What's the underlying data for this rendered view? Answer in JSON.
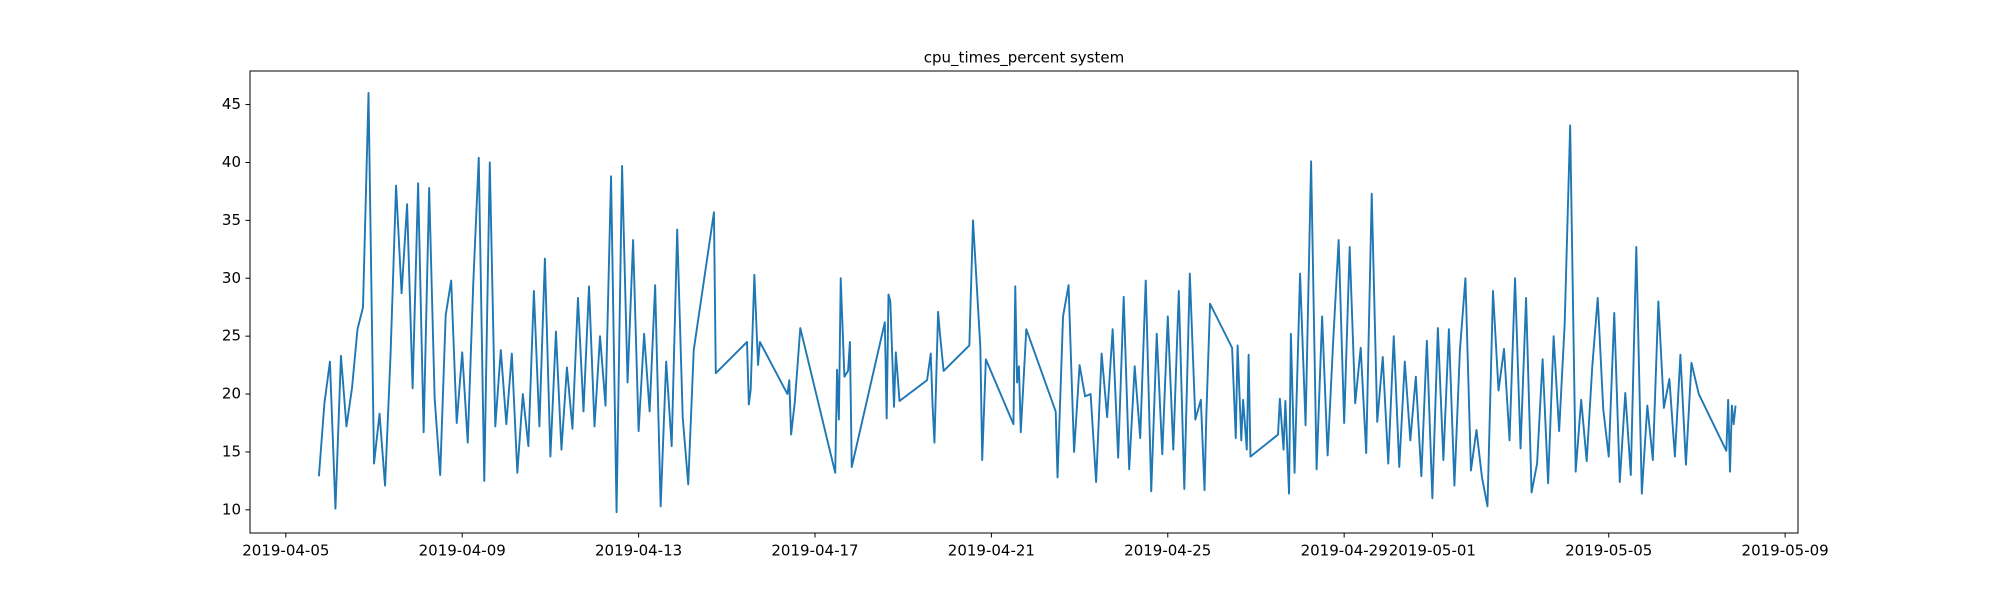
{
  "chart_data": {
    "type": "line",
    "title": "cpu_times_percent system",
    "color": "#1f77b4",
    "xlim": [
      "2019-04-04 04:30",
      "2019-05-09 07:00"
    ],
    "xticks": [
      "2019-04-05",
      "2019-04-09",
      "2019-04-13",
      "2019-04-17",
      "2019-04-21",
      "2019-04-25",
      "2019-04-29",
      "2019-05-01",
      "2019-05-05",
      "2019-05-09"
    ],
    "ylim": [
      8.0,
      47.9
    ],
    "yticks": [
      10,
      15,
      20,
      25,
      30,
      35,
      40,
      45
    ],
    "grid": false,
    "x": [
      "2019-04-05 18:00",
      "2019-04-05 21:00",
      "2019-04-06 00:00",
      "2019-04-06 03:00",
      "2019-04-06 06:00",
      "2019-04-06 09:00",
      "2019-04-06 12:00",
      "2019-04-06 15:00",
      "2019-04-06 18:00",
      "2019-04-06 21:00",
      "2019-04-07 00:00",
      "2019-04-07 03:00",
      "2019-04-07 06:00",
      "2019-04-07 09:00",
      "2019-04-07 12:00",
      "2019-04-07 15:00",
      "2019-04-07 18:00",
      "2019-04-07 21:00",
      "2019-04-08 00:00",
      "2019-04-08 03:00",
      "2019-04-08 06:00",
      "2019-04-08 09:00",
      "2019-04-08 12:00",
      "2019-04-08 15:00",
      "2019-04-08 18:00",
      "2019-04-08 21:00",
      "2019-04-09 00:00",
      "2019-04-09 03:00",
      "2019-04-09 06:00",
      "2019-04-09 09:00",
      "2019-04-09 12:00",
      "2019-04-09 15:00",
      "2019-04-09 18:00",
      "2019-04-09 21:00",
      "2019-04-10 00:00",
      "2019-04-10 03:00",
      "2019-04-10 06:00",
      "2019-04-10 09:00",
      "2019-04-10 12:00",
      "2019-04-10 15:00",
      "2019-04-10 18:00",
      "2019-04-10 21:00",
      "2019-04-11 00:00",
      "2019-04-11 03:00",
      "2019-04-11 06:00",
      "2019-04-11 09:00",
      "2019-04-11 12:00",
      "2019-04-11 15:00",
      "2019-04-11 18:00",
      "2019-04-11 21:00",
      "2019-04-12 00:00",
      "2019-04-12 03:00",
      "2019-04-12 06:00",
      "2019-04-12 09:00",
      "2019-04-12 12:00",
      "2019-04-12 15:00",
      "2019-04-12 18:00",
      "2019-04-12 21:00",
      "2019-04-13 00:00",
      "2019-04-13 03:00",
      "2019-04-13 06:00",
      "2019-04-13 09:00",
      "2019-04-13 12:00",
      "2019-04-13 15:00",
      "2019-04-13 18:00",
      "2019-04-13 21:00",
      "2019-04-14 00:00",
      "2019-04-14 03:00",
      "2019-04-14 06:00",
      "2019-04-14 17:00",
      "2019-04-14 18:00",
      "2019-04-15 11:00",
      "2019-04-15 12:00",
      "2019-04-15 13:00",
      "2019-04-15 15:00",
      "2019-04-15 17:00",
      "2019-04-15 18:00",
      "2019-04-16 09:00",
      "2019-04-16 10:00",
      "2019-04-16 11:00",
      "2019-04-16 13:00",
      "2019-04-16 16:00",
      "2019-04-17 11:00",
      "2019-04-17 12:00",
      "2019-04-17 13:00",
      "2019-04-17 14:00",
      "2019-04-17 16:00",
      "2019-04-17 18:00",
      "2019-04-17 19:00",
      "2019-04-17 20:00",
      "2019-04-18 14:00",
      "2019-04-18 15:00",
      "2019-04-18 16:00",
      "2019-04-18 17:00",
      "2019-04-18 19:00",
      "2019-04-18 20:00",
      "2019-04-18 22:00",
      "2019-04-19 13:00",
      "2019-04-19 15:00",
      "2019-04-19 16:00",
      "2019-04-19 17:00",
      "2019-04-19 19:00",
      "2019-04-19 20:00",
      "2019-04-19 22:00",
      "2019-04-20 12:00",
      "2019-04-20 14:00",
      "2019-04-20 16:00",
      "2019-04-20 18:00",
      "2019-04-20 19:00",
      "2019-04-20 21:00",
      "2019-04-21 12:00",
      "2019-04-21 13:00",
      "2019-04-21 14:00",
      "2019-04-21 15:00",
      "2019-04-21 16:00",
      "2019-04-21 19:00",
      "2019-04-22 11:00",
      "2019-04-22 12:00",
      "2019-04-22 15:00",
      "2019-04-22 18:00",
      "2019-04-22 21:00",
      "2019-04-23 00:00",
      "2019-04-23 03:00",
      "2019-04-23 06:00",
      "2019-04-23 09:00",
      "2019-04-23 12:00",
      "2019-04-23 15:00",
      "2019-04-23 18:00",
      "2019-04-23 21:00",
      "2019-04-24 00:00",
      "2019-04-24 03:00",
      "2019-04-24 06:00",
      "2019-04-24 09:00",
      "2019-04-24 12:00",
      "2019-04-24 15:00",
      "2019-04-24 18:00",
      "2019-04-24 21:00",
      "2019-04-25 00:00",
      "2019-04-25 03:00",
      "2019-04-25 06:00",
      "2019-04-25 09:00",
      "2019-04-25 12:00",
      "2019-04-25 15:00",
      "2019-04-25 18:00",
      "2019-04-25 20:00",
      "2019-04-25 21:00",
      "2019-04-25 23:00",
      "2019-04-26 11:00",
      "2019-04-26 13:00",
      "2019-04-26 14:00",
      "2019-04-26 16:00",
      "2019-04-26 17:00",
      "2019-04-26 19:00",
      "2019-04-26 20:00",
      "2019-04-26 21:00",
      "2019-04-27 12:00",
      "2019-04-27 13:00",
      "2019-04-27 15:00",
      "2019-04-27 16:00",
      "2019-04-27 18:00",
      "2019-04-27 19:00",
      "2019-04-27 21:00",
      "2019-04-28 00:00",
      "2019-04-28 03:00",
      "2019-04-28 06:00",
      "2019-04-28 09:00",
      "2019-04-28 12:00",
      "2019-04-28 15:00",
      "2019-04-28 18:00",
      "2019-04-28 21:00",
      "2019-04-29 00:00",
      "2019-04-29 03:00",
      "2019-04-29 06:00",
      "2019-04-29 09:00",
      "2019-04-29 12:00",
      "2019-04-29 15:00",
      "2019-04-29 18:00",
      "2019-04-29 21:00",
      "2019-04-30 00:00",
      "2019-04-30 03:00",
      "2019-04-30 06:00",
      "2019-04-30 09:00",
      "2019-04-30 12:00",
      "2019-04-30 15:00",
      "2019-04-30 18:00",
      "2019-04-30 21:00",
      "2019-05-01 00:00",
      "2019-05-01 03:00",
      "2019-05-01 06:00",
      "2019-05-01 09:00",
      "2019-05-01 12:00",
      "2019-05-01 15:00",
      "2019-05-01 18:00",
      "2019-05-01 21:00",
      "2019-05-02 00:00",
      "2019-05-02 03:00",
      "2019-05-02 06:00",
      "2019-05-02 09:00",
      "2019-05-02 12:00",
      "2019-05-02 15:00",
      "2019-05-02 18:00",
      "2019-05-02 21:00",
      "2019-05-03 00:00",
      "2019-05-03 03:00",
      "2019-05-03 06:00",
      "2019-05-03 09:00",
      "2019-05-03 12:00",
      "2019-05-03 15:00",
      "2019-05-03 18:00",
      "2019-05-03 21:00",
      "2019-05-04 00:00",
      "2019-05-04 03:00",
      "2019-05-04 06:00",
      "2019-05-04 09:00",
      "2019-05-04 12:00",
      "2019-05-04 15:00",
      "2019-05-04 18:00",
      "2019-05-04 21:00",
      "2019-05-05 00:00",
      "2019-05-05 03:00",
      "2019-05-05 06:00",
      "2019-05-05 09:00",
      "2019-05-05 12:00",
      "2019-05-05 15:00",
      "2019-05-05 18:00",
      "2019-05-05 21:00",
      "2019-05-06 00:00",
      "2019-05-06 03:00",
      "2019-05-06 06:00",
      "2019-05-06 09:00",
      "2019-05-06 12:00",
      "2019-05-06 15:00",
      "2019-05-06 18:00",
      "2019-05-06 21:00",
      "2019-05-07 01:00",
      "2019-05-07 16:00",
      "2019-05-07 17:00",
      "2019-05-07 18:00",
      "2019-05-07 19:00",
      "2019-05-07 20:00",
      "2019-05-07 21:00"
    ],
    "values": [
      12.9,
      19.2,
      22.8,
      10.1,
      23.3,
      17.2,
      20.5,
      25.6,
      27.5,
      46.0,
      14,
      18.3,
      12.1,
      23.4,
      38,
      28.7,
      36.4,
      20.5,
      38.2,
      16.7,
      37.8,
      19.6,
      13,
      26.8,
      29.8,
      17.5,
      23.6,
      15.8,
      29.5,
      40.4,
      12.5,
      40.0,
      17.2,
      23.8,
      17.4,
      23.5,
      13.2,
      20,
      15.5,
      28.9,
      17.2,
      31.7,
      14.6,
      25.4,
      15.2,
      22.3,
      17,
      28.3,
      18.5,
      29.3,
      17.2,
      25,
      19,
      38.8,
      9.8,
      39.7,
      21,
      33.3,
      16.8,
      25.2,
      18.5,
      29.4,
      10.3,
      22.8,
      15.5,
      34.2,
      18,
      12.2,
      23.8,
      35.7,
      21.8,
      24.5,
      19.1,
      20.4,
      30.3,
      22.5,
      24.5,
      20,
      21.2,
      16.5,
      19.3,
      25.7,
      13.2,
      22.1,
      17.8,
      30,
      21.5,
      22,
      24.5,
      13.7,
      26.2,
      17.9,
      28.6,
      28,
      18.9,
      23.6,
      19.4,
      21.2,
      23.5,
      19,
      15.8,
      27.1,
      25.2,
      22,
      24.2,
      35,
      29.5,
      24,
      14.3,
      23,
      17.4,
      29.3,
      21,
      22.4,
      16.7,
      25.6,
      18.5,
      12.8,
      26.7,
      29.4,
      15,
      22.5,
      19.8,
      20,
      12.4,
      23.5,
      18,
      25.6,
      14.5,
      28.4,
      13.5,
      22.4,
      16.2,
      29.8,
      11.6,
      25.2,
      14.8,
      26.7,
      15.2,
      28.9,
      11.8,
      30.4,
      17.8,
      19.5,
      11.7,
      18.2,
      27.8,
      24,
      16.2,
      24.2,
      16,
      19.5,
      15.2,
      23.4,
      14.6,
      16.5,
      19.6,
      15.2,
      19.4,
      11.4,
      25.2,
      13.2,
      30.4,
      17.3,
      40.1,
      13.5,
      26.7,
      14.7,
      24.5,
      33.3,
      17.5,
      32.7,
      19.2,
      24,
      14.9,
      37.3,
      17.6,
      23.2,
      14,
      25,
      13.7,
      22.8,
      16,
      21.5,
      12.9,
      24.6,
      11,
      25.7,
      14.3,
      25.6,
      12.1,
      23.8,
      30,
      13.4,
      16.9,
      12.8,
      10.3,
      28.9,
      20.3,
      23.9,
      16,
      30,
      15.3,
      28.3,
      11.5,
      14,
      23,
      12.3,
      25,
      16.8,
      26,
      43.2,
      13.3,
      19.5,
      14.2,
      22.3,
      28.3,
      18.7,
      14.6,
      27,
      12.4,
      20.1,
      13,
      32.7,
      11.4,
      19,
      14.3,
      28,
      18.8,
      21.3,
      14.6,
      23.4,
      13.9,
      22.7,
      20,
      15.1,
      19.5,
      13.3,
      19,
      17.4,
      19
    ]
  }
}
